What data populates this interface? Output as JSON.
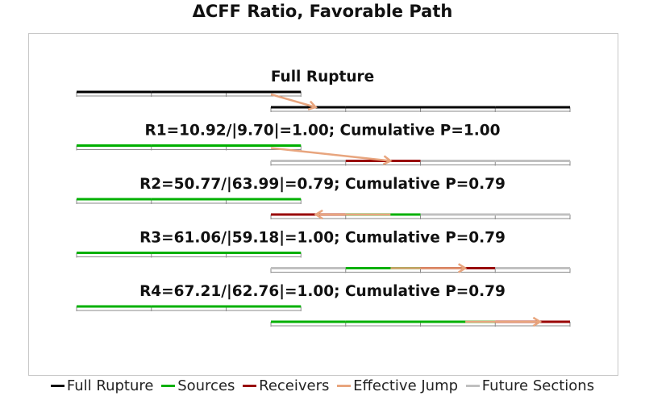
{
  "title": "ΔCFF Ratio, Favorable Path",
  "colors": {
    "full_rupture": "#000000",
    "sources": "#00b000",
    "receivers": "#990000",
    "effective_jump": "#e8a57e",
    "future_sections": "#c0c0c0"
  },
  "panels": [
    {
      "label": "Full Rupture",
      "fault1": [
        "full_rupture",
        "full_rupture",
        "full_rupture"
      ],
      "fault2": [
        "full_rupture",
        "full_rupture",
        "full_rupture",
        "full_rupture"
      ],
      "jump": {
        "from_fault": 1,
        "from_pos": 0.0,
        "to_fault": 2,
        "to_pos": 0.6
      }
    },
    {
      "label": "R1=10.92/|9.70|=1.00; Cumulative P=1.00",
      "fault1": [
        "sources",
        "sources",
        "sources"
      ],
      "fault2": [
        "future_sections",
        "receivers",
        "future_sections",
        "future_sections"
      ],
      "jump": {
        "from_fault": 1,
        "from_pos": 0.0,
        "to_fault": 2,
        "to_pos": 1.6
      }
    },
    {
      "label": "R2=50.77/|63.99|=0.79; Cumulative P=0.79",
      "fault1": [
        "sources",
        "sources",
        "sources"
      ],
      "fault2": [
        "receivers",
        "sources",
        "future_sections",
        "future_sections"
      ],
      "jump": {
        "from_fault": 2,
        "from_pos": 1.6,
        "to_fault": 2,
        "to_pos": 0.6
      }
    },
    {
      "label": "R3=61.06/|59.18|=1.00; Cumulative P=0.79",
      "fault1": [
        "sources",
        "sources",
        "sources"
      ],
      "fault2": [
        "future_sections",
        "sources",
        "receivers",
        "future_sections"
      ],
      "jump": {
        "from_fault": 2,
        "from_pos": 1.6,
        "to_fault": 2,
        "to_pos": 2.6
      }
    },
    {
      "label": "R4=67.21/|62.76|=1.00; Cumulative P=0.79",
      "fault1": [
        "sources",
        "sources",
        "sources"
      ],
      "fault2": [
        "sources",
        "sources",
        "sources",
        "receivers"
      ],
      "jump": {
        "from_fault": 2,
        "from_pos": 2.6,
        "to_fault": 2,
        "to_pos": 3.6
      }
    }
  ],
  "legend": [
    {
      "key": "full_rupture",
      "label": "Full Rupture"
    },
    {
      "key": "sources",
      "label": "Sources"
    },
    {
      "key": "receivers",
      "label": "Receivers"
    },
    {
      "key": "effective_jump",
      "label": "Effective Jump"
    },
    {
      "key": "future_sections",
      "label": "Future Sections"
    }
  ]
}
